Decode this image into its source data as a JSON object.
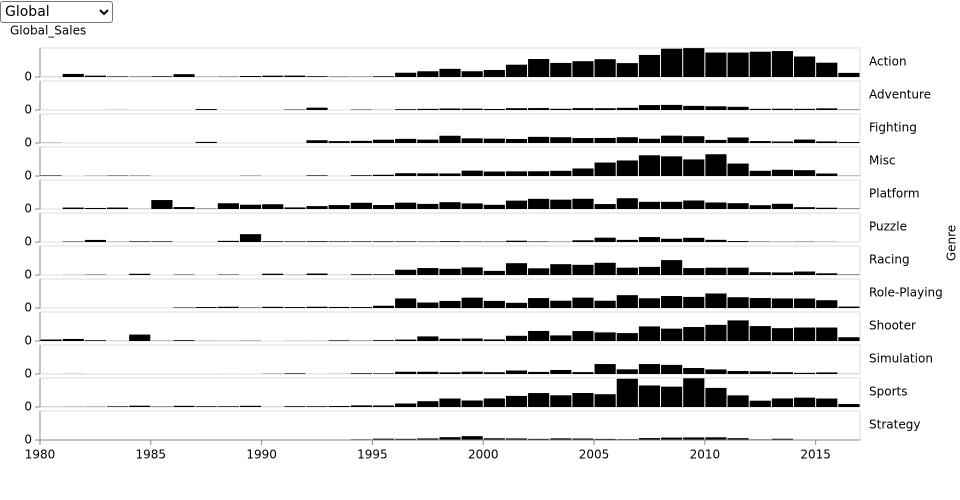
{
  "control": {
    "selected": "Global"
  },
  "chart_data": {
    "type": "bar",
    "y_label": "Global_Sales",
    "facet_label": "Genre",
    "color": "#000000",
    "ylim": [
      0,
      140
    ],
    "yticks": [
      0
    ],
    "xlim": [
      1980,
      2017
    ],
    "xticks": [
      1980,
      1985,
      1990,
      1995,
      2000,
      2005,
      2010,
      2015
    ],
    "x": [
      1980,
      1981,
      1982,
      1983,
      1984,
      1985,
      1986,
      1987,
      1988,
      1989,
      1990,
      1991,
      1992,
      1993,
      1994,
      1995,
      1996,
      1997,
      1998,
      1999,
      2000,
      2001,
      2002,
      2003,
      2004,
      2005,
      2006,
      2007,
      2008,
      2009,
      2010,
      2011,
      2012,
      2013,
      2014,
      2015,
      2016
    ],
    "facets": [
      {
        "name": "Action",
        "values": [
          0.34,
          14.8,
          6.5,
          2.9,
          1.9,
          3.5,
          13.7,
          1.1,
          1.7,
          4.6,
          6.4,
          6.8,
          3.8,
          1.8,
          1.6,
          3.6,
          20.6,
          27.6,
          39.4,
          27.8,
          34.0,
          59.4,
          86.8,
          67.9,
          76.2,
          85.9,
          67.0,
          106.5,
          136.4,
          139.4,
          118.0,
          118.0,
          122.0,
          125.2,
          99.0,
          69.0,
          19.9
        ]
      },
      {
        "name": "Adventure",
        "values": [
          0,
          0,
          0,
          0.4,
          0,
          0,
          0,
          4.4,
          0,
          0,
          0,
          2.2,
          11.3,
          0,
          2.0,
          0.5,
          3.9,
          5.5,
          7.2,
          6.7,
          4.9,
          8.8,
          9.4,
          5.8,
          9.1,
          8.6,
          10.5,
          23.7,
          24.6,
          20.0,
          17.9,
          15.4,
          5.6,
          6.1,
          5.6,
          8.0,
          1.8
        ]
      },
      {
        "name": "Fighting",
        "values": [
          0.8,
          0,
          0,
          0,
          0,
          0,
          0,
          5.4,
          0,
          0,
          0,
          0,
          13.4,
          9.0,
          10.4,
          15.8,
          19.9,
          16.3,
          35.0,
          22.6,
          21.1,
          19.4,
          29.7,
          28.0,
          23.9,
          24.4,
          28.0,
          20.4,
          35.5,
          32.8,
          14.9,
          26.7,
          9.4,
          7.2,
          16.6,
          7.8,
          4.5
        ]
      },
      {
        "name": "Misc",
        "values": [
          2.7,
          0,
          0.9,
          2.1,
          1.5,
          0,
          0,
          0,
          0,
          1.3,
          0,
          0,
          3.2,
          0,
          3.7,
          5.9,
          13.4,
          12.8,
          12.3,
          25.7,
          21.6,
          22.4,
          22.8,
          25.0,
          36.4,
          65.0,
          75.0,
          100.0,
          95.0,
          80.0,
          105.0,
          60.0,
          25.0,
          30.0,
          28.0,
          12.0,
          1.0
        ]
      },
      {
        "name": "Platform",
        "values": [
          0,
          6.9,
          5.0,
          6.9,
          0.7,
          43.2,
          9.4,
          1.7,
          27.7,
          20.7,
          22.9,
          7.6,
          13.9,
          18.9,
          30.1,
          19.3,
          30.5,
          24.6,
          32.9,
          27.0,
          20.3,
          40.4,
          49.1,
          45.1,
          49.4,
          23.9,
          52.0,
          34.6,
          34.6,
          41.0,
          31.5,
          28.0,
          18.4,
          25.1,
          8.8,
          6.1,
          2.1
        ]
      },
      {
        "name": "Puzzle",
        "values": [
          0,
          2.2,
          10.0,
          0.8,
          3.2,
          3.2,
          0,
          0,
          5.6,
          37.8,
          3.8,
          3.2,
          3.8,
          3.0,
          3.1,
          3.3,
          3.2,
          2.5,
          3.9,
          2.6,
          2.3,
          6.2,
          2.6,
          1.3,
          8.3,
          20.9,
          10.3,
          23.9,
          15.6,
          20.3,
          10.5,
          4.6,
          1.7,
          1.0,
          1.5,
          0.7,
          0
        ]
      },
      {
        "name": "Racing",
        "values": [
          0,
          0.5,
          1.6,
          0,
          5.9,
          0,
          1.9,
          0,
          2.1,
          0,
          6.3,
          0.8,
          7.1,
          0.3,
          4.0,
          3.6,
          25.4,
          33.5,
          29.9,
          36.7,
          19.9,
          57.0,
          32.3,
          52.3,
          49.2,
          59.0,
          35.3,
          39.2,
          72.0,
          33.4,
          35.2,
          35.5,
          13.5,
          12.4,
          16.7,
          8.1,
          2.1
        ]
      },
      {
        "name": "Role-Playing",
        "values": [
          0,
          0,
          0,
          0,
          0,
          0,
          2.5,
          4.6,
          5.9,
          2.2,
          5.7,
          4.5,
          6.1,
          5.1,
          4.6,
          10.9,
          46.0,
          26.4,
          34.0,
          50.0,
          34.3,
          25.1,
          48.0,
          35.3,
          50.0,
          35.0,
          62.0,
          46.9,
          58.0,
          53.6,
          70.0,
          52.0,
          48.2,
          46.0,
          45.6,
          37.6,
          6.8
        ]
      },
      {
        "name": "Shooter",
        "values": [
          7.1,
          10.0,
          3.8,
          0.5,
          31.1,
          1.0,
          3.9,
          0.7,
          0.5,
          1.2,
          0,
          0.4,
          0.4,
          3.2,
          1.6,
          4.0,
          6.9,
          22.2,
          10.9,
          11.9,
          7.6,
          25.1,
          48.5,
          27.0,
          48.0,
          41.5,
          38.1,
          70.4,
          59.6,
          67.4,
          78.0,
          99.4,
          72.0,
          62.0,
          65.0,
          65.0,
          18.2
        ]
      },
      {
        "name": "Simulation",
        "values": [
          0,
          0.4,
          0,
          0,
          0,
          0,
          0,
          0,
          0.1,
          0,
          1.1,
          3.2,
          0.1,
          0.5,
          3.6,
          3.1,
          10.9,
          10.8,
          7.9,
          11.3,
          8.5,
          16.8,
          10.1,
          19.4,
          9.1,
          48.0,
          22.5,
          48.0,
          44.0,
          29.0,
          22.0,
          14.5,
          13.0,
          8.6,
          5.6,
          7.6,
          0.4
        ]
      },
      {
        "name": "Sports",
        "values": [
          0.5,
          0.8,
          1.1,
          3.2,
          6.2,
          2.0,
          5.6,
          3.7,
          3.6,
          5.7,
          0.5,
          3.9,
          3.6,
          4.7,
          7.9,
          7.3,
          16.9,
          28.1,
          40.9,
          31.4,
          41.2,
          53.6,
          67.2,
          56.4,
          67.6,
          61.7,
          136.2,
          104.0,
          98.3,
          138.5,
          92.1,
          56.1,
          30.4,
          41.2,
          45.2,
          40.9,
          14.3
        ]
      },
      {
        "name": "Strategy",
        "values": [
          0,
          0,
          0,
          0,
          0,
          0,
          0,
          0,
          0,
          0,
          0,
          0.9,
          0.3,
          0.8,
          3.5,
          6.5,
          5.6,
          7.7,
          13.6,
          18.5,
          8.5,
          7.6,
          5.5,
          7.9,
          7.1,
          5.3,
          4.2,
          9.3,
          11.6,
          12.4,
          12.9,
          8.8,
          3.3,
          6.1,
          1.0,
          1.8,
          0.5
        ]
      }
    ]
  }
}
